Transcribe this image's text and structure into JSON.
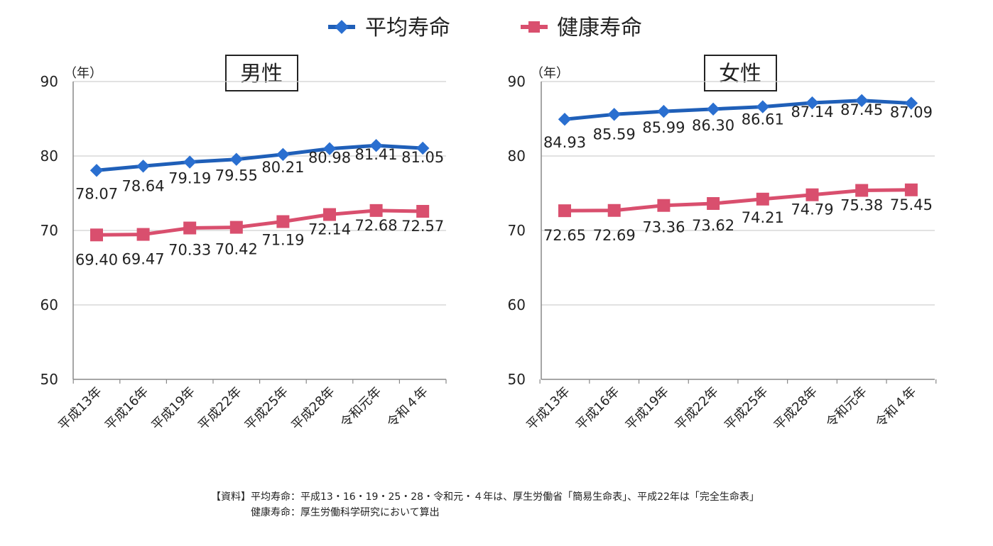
{
  "legend": {
    "series_avg_label": "平均寿命",
    "series_healthy_label": "健康寿命",
    "avg_color": "#1f5fb8",
    "avg_marker_color": "#2a6fd0",
    "healthy_color": "#d94f6e",
    "healthy_marker_color": "#d94f6e"
  },
  "chart_data": [
    {
      "type": "line",
      "title": "男性",
      "ylabel": "（年）",
      "ylim": [
        50,
        90
      ],
      "yticks": [
        "50",
        "60",
        "70",
        "80",
        "90"
      ],
      "categories": [
        "平成13年",
        "平成16年",
        "平成19年",
        "平成22年",
        "平成25年",
        "平成28年",
        "令和元年",
        "令和４年"
      ],
      "series": [
        {
          "name": "平均寿命",
          "values": [
            78.07,
            78.64,
            79.19,
            79.55,
            80.21,
            80.98,
            81.41,
            81.05
          ],
          "labels": [
            "78.07",
            "78.64",
            "79.19",
            "79.55",
            "80.21",
            "80.98",
            "81.41",
            "81.05"
          ]
        },
        {
          "name": "健康寿命",
          "values": [
            69.4,
            69.47,
            70.33,
            70.42,
            71.19,
            72.14,
            72.68,
            72.57
          ],
          "labels": [
            "69.40",
            "69.47",
            "70.33",
            "70.42",
            "71.19",
            "72.14",
            "72.68",
            "72.57"
          ]
        }
      ]
    },
    {
      "type": "line",
      "title": "女性",
      "ylabel": "（年）",
      "ylim": [
        50,
        90
      ],
      "yticks": [
        "50",
        "60",
        "70",
        "80",
        "90"
      ],
      "categories": [
        "平成13年",
        "平成16年",
        "平成19年",
        "平成22年",
        "平成25年",
        "平成28年",
        "令和元年",
        "令和４年"
      ],
      "series": [
        {
          "name": "平均寿命",
          "values": [
            84.93,
            85.59,
            85.99,
            86.3,
            86.61,
            87.14,
            87.45,
            87.09
          ],
          "labels": [
            "84.93",
            "85.59",
            "85.99",
            "86.30",
            "86.61",
            "87.14",
            "87.45",
            "87.09"
          ]
        },
        {
          "name": "健康寿命",
          "values": [
            72.65,
            72.69,
            73.36,
            73.62,
            74.21,
            74.79,
            75.38,
            75.45
          ],
          "labels": [
            "72.65",
            "72.69",
            "73.36",
            "73.62",
            "74.21",
            "74.79",
            "75.38",
            "75.45"
          ]
        }
      ]
    }
  ],
  "notes": {
    "line1": "【資料】平均寿命：平成13・16・19・25・28・令和元・４年は、厚生労働省「簡易生命表」、平成22年は「完全生命表」",
    "line2": "　　　　健康寿命：厚生労働科学研究において算出"
  }
}
